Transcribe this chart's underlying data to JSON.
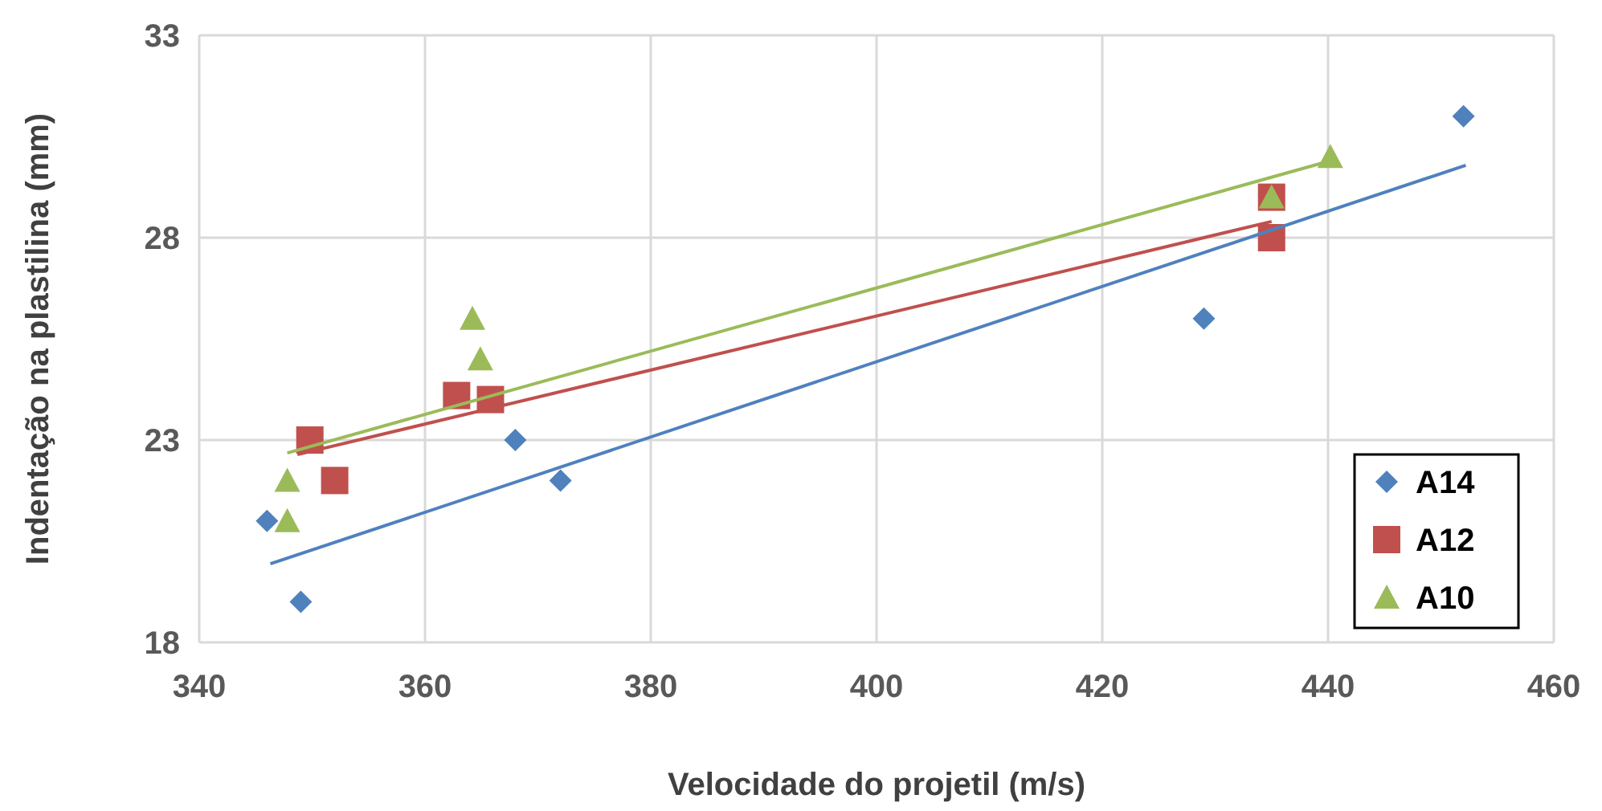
{
  "chart_data": {
    "type": "scatter",
    "xlabel": "Velocidade do projetil (m/s)",
    "ylabel": "Indentação na plastilina (mm)",
    "xlim": [
      340,
      460
    ],
    "xticks": [
      340,
      360,
      380,
      400,
      420,
      440,
      460
    ],
    "ylim": [
      18,
      33
    ],
    "yticks": [
      18,
      23,
      28,
      33
    ],
    "grid": true,
    "legend": "bottom right",
    "series": [
      {
        "name": "A14",
        "color": "#4f81bd",
        "marker": "diamond",
        "x": [
          346,
          349,
          368,
          372,
          429,
          452
        ],
        "values": [
          21,
          19,
          23,
          22,
          26,
          31
        ]
      },
      {
        "name": "A12",
        "color": "#c0504d",
        "marker": "square",
        "x": [
          349.8,
          352,
          362.8,
          365.8,
          435,
          435
        ],
        "values": [
          23,
          22,
          24.1,
          24,
          28,
          29
        ]
      },
      {
        "name": "A10",
        "color": "#9bbb59",
        "marker": "triangle",
        "x": [
          347.8,
          347.8,
          364.2,
          364.9,
          435,
          440.2
        ],
        "values": [
          22,
          21,
          26,
          25,
          29,
          30
        ]
      },
      {
        "type": "line",
        "color": "#4f81bd",
        "marker": "none",
        "x": [
          346.3,
          452.2
        ],
        "values": [
          19.94,
          29.79
        ]
      },
      {
        "type": "line",
        "color": "#c0504d",
        "marker": "none",
        "x": [
          348.7,
          435
        ],
        "values": [
          22.64,
          28.4
        ]
      },
      {
        "type": "line",
        "color": "#9bbb59",
        "marker": "none",
        "x": [
          347.8,
          440.2
        ],
        "values": [
          22.68,
          29.9
        ]
      }
    ]
  }
}
